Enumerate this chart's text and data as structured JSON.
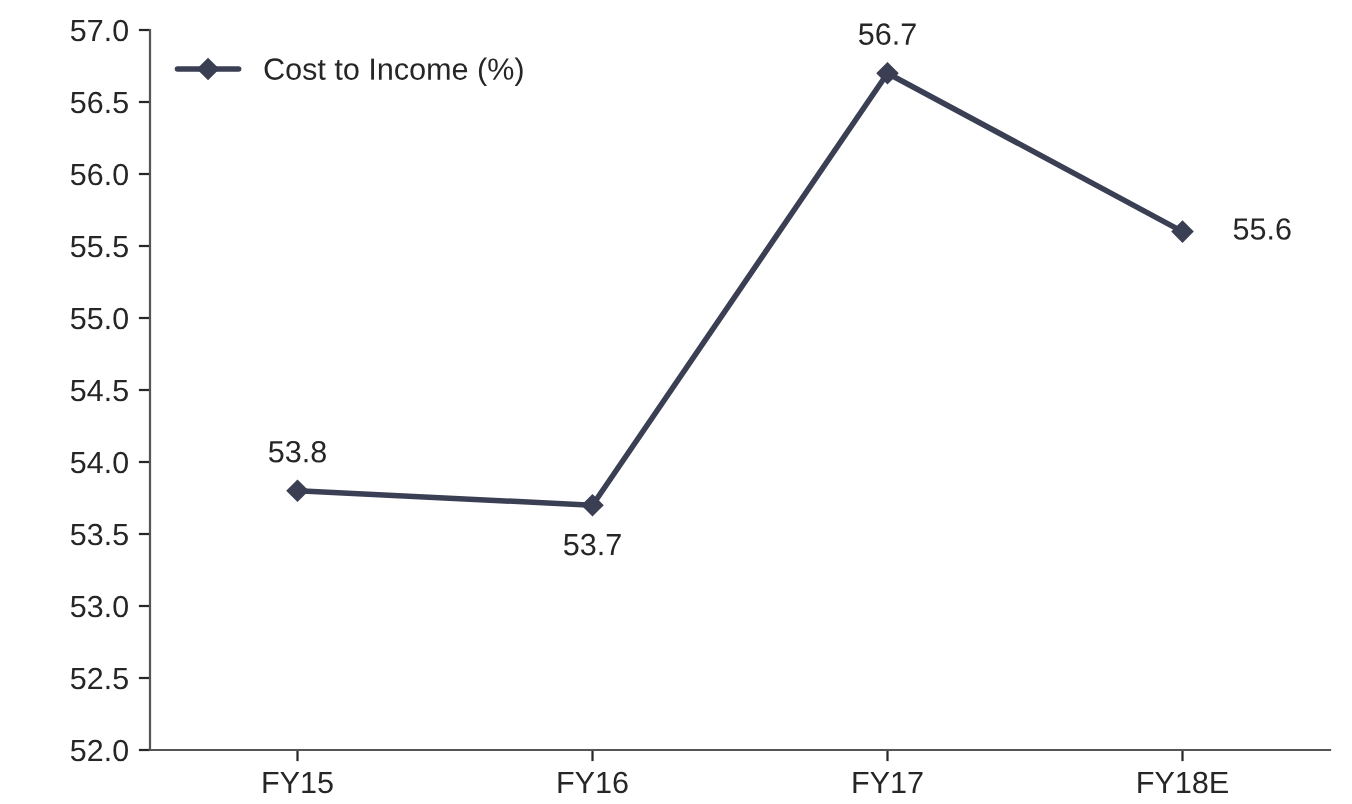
{
  "chart_data": {
    "type": "line",
    "categories": [
      "FY15",
      "FY16",
      "FY17",
      "FY18E"
    ],
    "series": [
      {
        "name": "Cost to Income (%)",
        "color": "#3b3f54",
        "values": [
          53.8,
          53.7,
          56.7,
          55.6
        ]
      }
    ],
    "ylim": [
      52.0,
      57.0
    ],
    "yticks": [
      {
        "value": 52,
        "label": "52.0"
      },
      52.5,
      {
        "value": 53,
        "label": "53.0"
      },
      53.5,
      {
        "value": 54,
        "label": "54.0"
      },
      54.5,
      {
        "value": 55,
        "label": "55.0"
      },
      55.5,
      {
        "value": 56,
        "label": "56.0"
      },
      56.5,
      {
        "value": 57,
        "label": "57.0"
      }
    ],
    "data_labels": true,
    "marker": "diamond",
    "line_style": "solid",
    "legend": "top left",
    "grid": false
  }
}
